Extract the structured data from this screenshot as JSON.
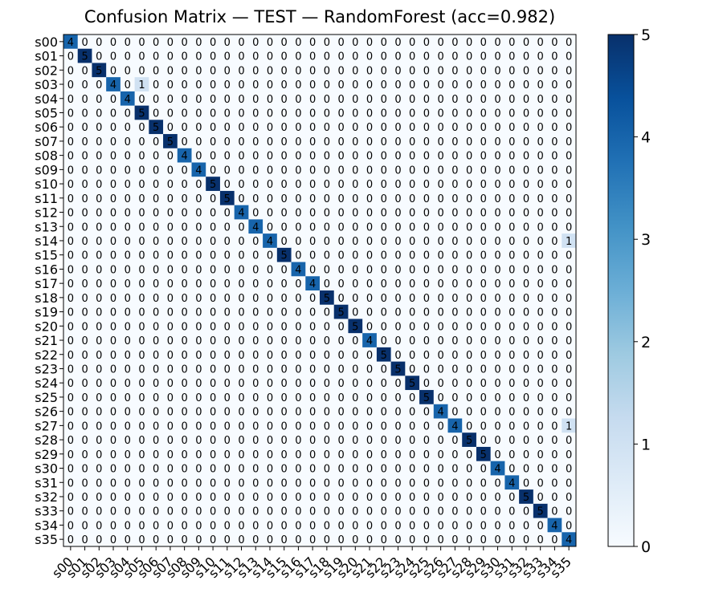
{
  "chart_data": {
    "type": "heatmap",
    "title": "Confusion Matrix — TEST — RandomForest (acc=0.982)",
    "xlabel": "",
    "ylabel": "",
    "labels": [
      "s00",
      "s01",
      "s02",
      "s03",
      "s04",
      "s05",
      "s06",
      "s07",
      "s08",
      "s09",
      "s10",
      "s11",
      "s12",
      "s13",
      "s14",
      "s15",
      "s16",
      "s17",
      "s18",
      "s19",
      "s20",
      "s21",
      "s22",
      "s23",
      "s24",
      "s25",
      "s26",
      "s27",
      "s28",
      "s29",
      "s30",
      "s31",
      "s32",
      "s33",
      "s34",
      "s35"
    ],
    "diagonal": [
      4,
      5,
      5,
      4,
      4,
      5,
      5,
      5,
      4,
      4,
      5,
      5,
      4,
      4,
      4,
      5,
      4,
      4,
      5,
      5,
      5,
      4,
      5,
      5,
      5,
      5,
      4,
      4,
      5,
      5,
      4,
      4,
      5,
      5,
      4,
      4
    ],
    "off_diagonal": [
      {
        "row": "s03",
        "col": "s05",
        "value": 1
      },
      {
        "row": "s14",
        "col": "s35",
        "value": 1
      },
      {
        "row": "s27",
        "col": "s35",
        "value": 1
      }
    ],
    "colormap": "Blues",
    "colorbar": {
      "min": 0,
      "max": 5,
      "ticks": [
        0,
        1,
        2,
        3,
        4,
        5
      ]
    },
    "colors": {
      "low": "#f7fbff",
      "high": "#08306b"
    }
  }
}
